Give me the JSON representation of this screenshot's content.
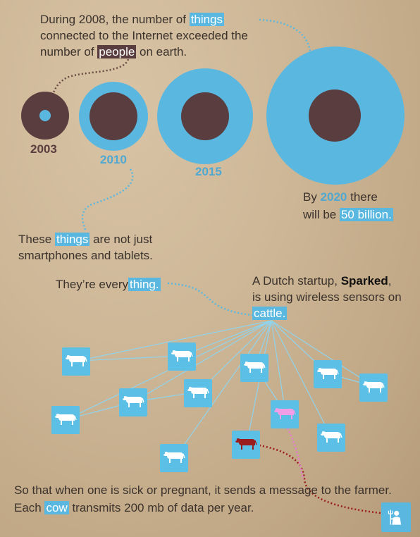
{
  "intro": {
    "line1_pre": "During 2008, the number of ",
    "line1_hl": "things",
    "line2": "connected to the Internet exceeded the",
    "line3_pre": "number of ",
    "line3_hl": "people",
    "line3_post": " on earth."
  },
  "years": {
    "y2003": "2003",
    "y2010": "2010",
    "y2015": "2015"
  },
  "chart_data": {
    "type": "bubble",
    "categories": [
      "2003",
      "2010",
      "2015",
      "2020"
    ],
    "series": [],
    "colors": {
      "things": "#5ab8e0",
      "people": "#5a3d3e"
    }
  },
  "by2020": {
    "pre": "By ",
    "year": "2020",
    "post": " there",
    "line2_pre": "will be ",
    "line2_hl": "50 billion."
  },
  "things_not": {
    "pre": "These ",
    "hl": "things",
    "post": " are not just",
    "line2": "smartphones and tablets."
  },
  "everything": {
    "pre": "They’re every",
    "hl": "thing."
  },
  "dutch": {
    "pre": "A Dutch startup, ",
    "bold": "Sparked",
    "post": ",",
    "line2": "is using wireless sensors on",
    "hl": "cattle."
  },
  "bottom": {
    "line1": "So that when one is sick or pregnant, it sends a message to the farmer.",
    "line2_pre": "Each ",
    "line2_hl": "cow",
    "line2_post": " transmits 200 mb of data per year."
  },
  "icons": {
    "cow": "cow-icon",
    "farmer": "farmer-icon"
  }
}
